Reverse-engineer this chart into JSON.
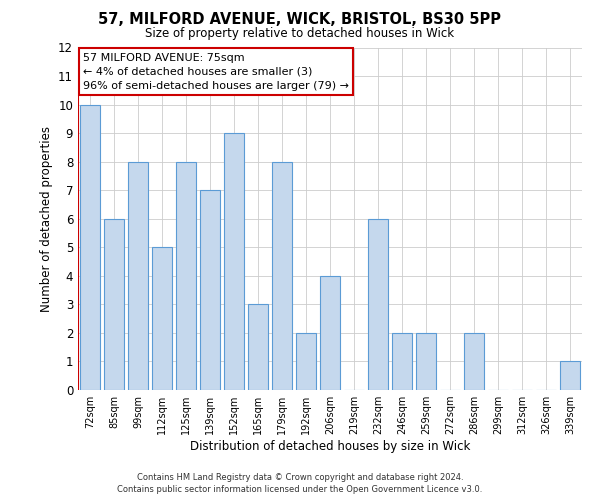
{
  "title": "57, MILFORD AVENUE, WICK, BRISTOL, BS30 5PP",
  "subtitle": "Size of property relative to detached houses in Wick",
  "xlabel": "Distribution of detached houses by size in Wick",
  "ylabel": "Number of detached properties",
  "categories": [
    "72sqm",
    "85sqm",
    "99sqm",
    "112sqm",
    "125sqm",
    "139sqm",
    "152sqm",
    "165sqm",
    "179sqm",
    "192sqm",
    "206sqm",
    "219sqm",
    "232sqm",
    "246sqm",
    "259sqm",
    "272sqm",
    "286sqm",
    "299sqm",
    "312sqm",
    "326sqm",
    "339sqm"
  ],
  "values": [
    10,
    6,
    8,
    5,
    8,
    7,
    9,
    3,
    8,
    2,
    4,
    0,
    6,
    2,
    2,
    0,
    2,
    0,
    0,
    0,
    1
  ],
  "bar_color": "#c5d8ed",
  "bar_edge_color": "#5b9bd5",
  "annotation_text_line1": "57 MILFORD AVENUE: 75sqm",
  "annotation_text_line2": "← 4% of detached houses are smaller (3)",
  "annotation_text_line3": "96% of semi-detached houses are larger (79) →",
  "annotation_box_color": "#ffffff",
  "annotation_box_edge_color": "#cc0000",
  "vline_color": "#cc0000",
  "ylim": [
    0,
    12
  ],
  "yticks": [
    0,
    1,
    2,
    3,
    4,
    5,
    6,
    7,
    8,
    9,
    10,
    11,
    12
  ],
  "grid_color": "#cccccc",
  "background_color": "#ffffff",
  "footer_line1": "Contains HM Land Registry data © Crown copyright and database right 2024.",
  "footer_line2": "Contains public sector information licensed under the Open Government Licence v3.0."
}
